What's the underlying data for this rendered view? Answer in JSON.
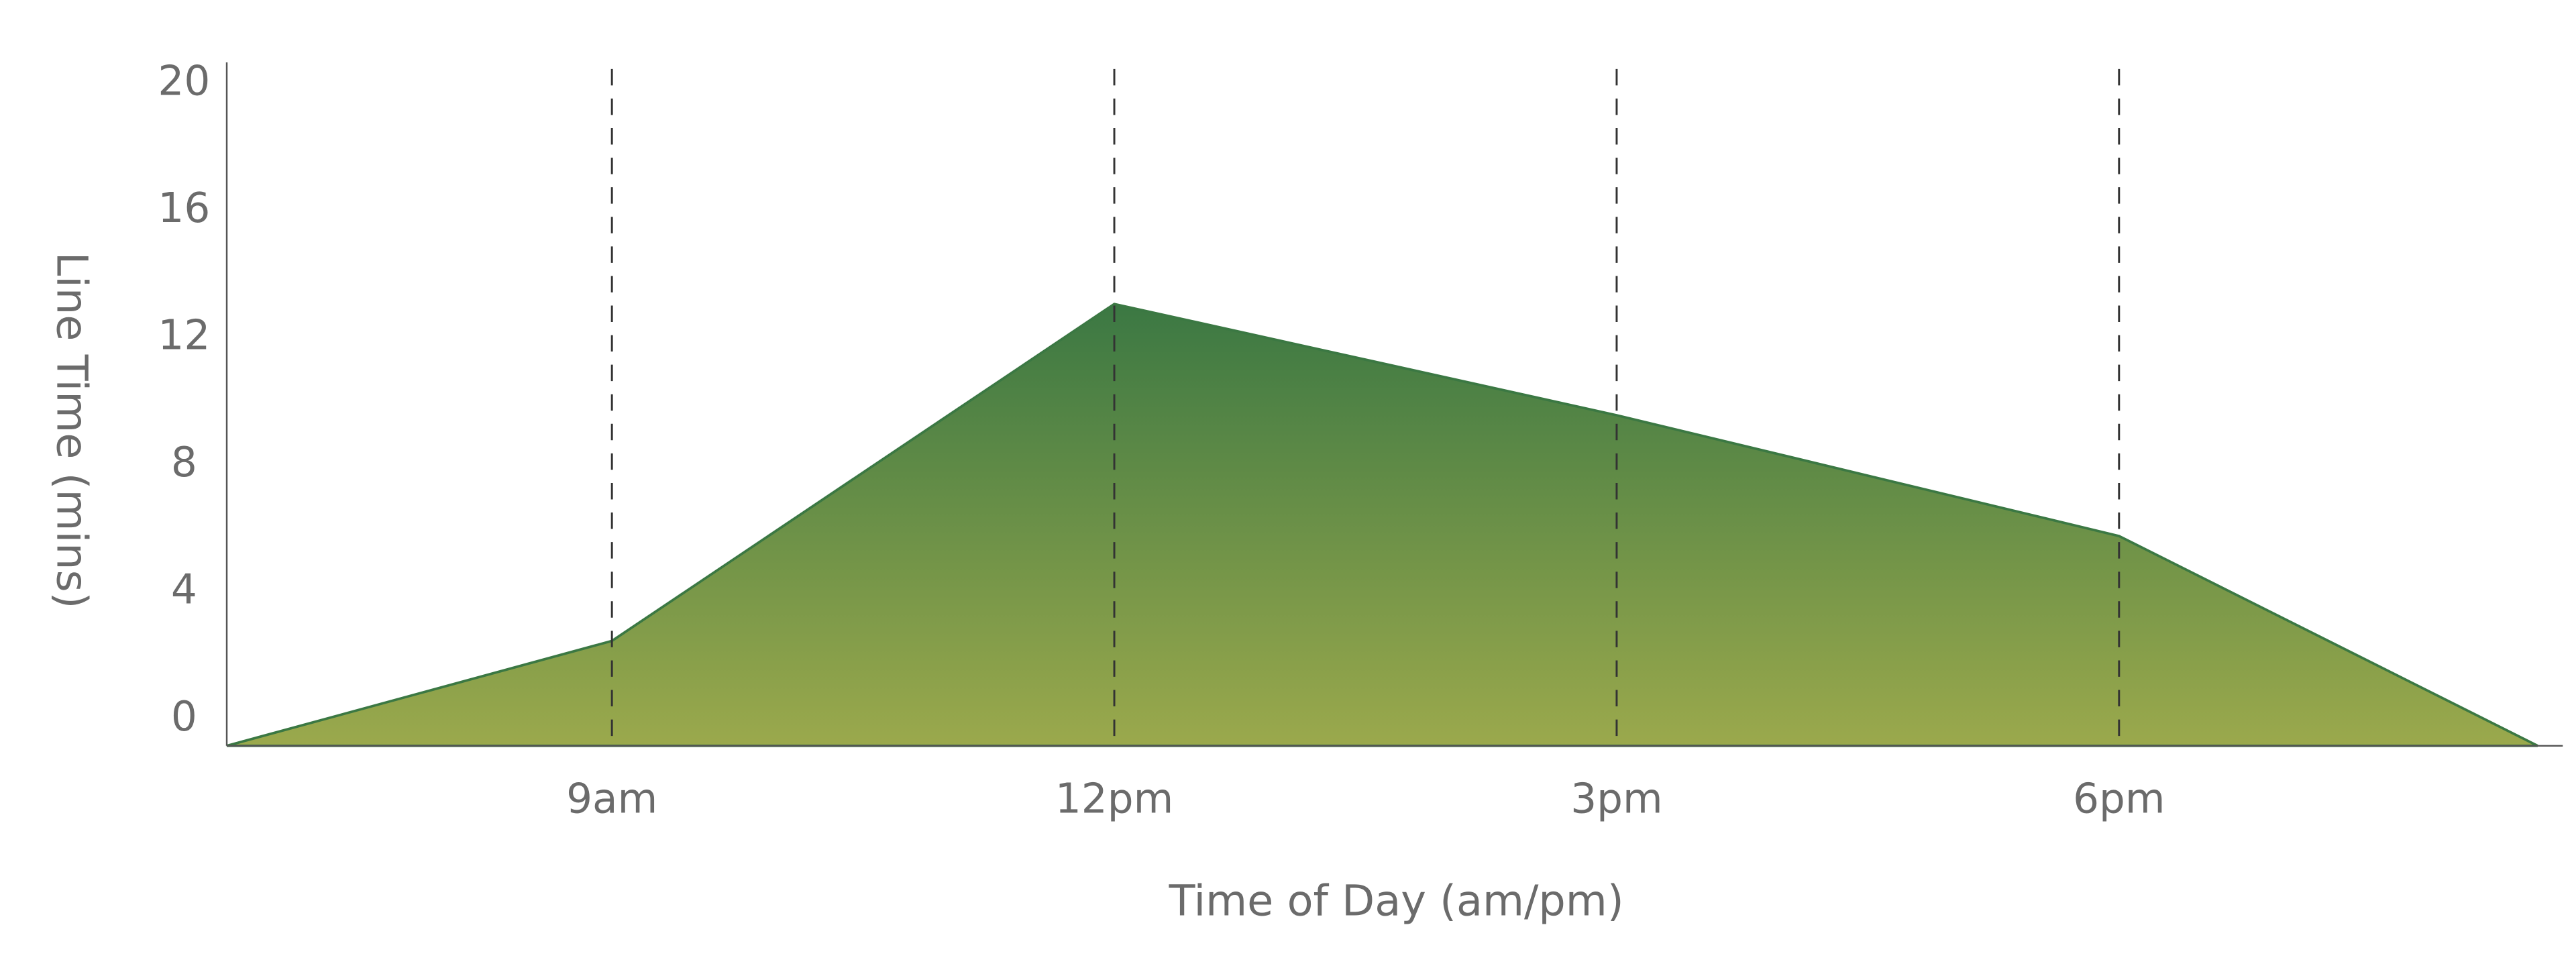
{
  "chart_data": {
    "type": "area",
    "xlabel": "Time of Day (am/pm)",
    "ylabel": "Line Time (mins)",
    "x": [
      6.7,
      9,
      12,
      15,
      18,
      20.5
    ],
    "values": [
      0,
      3.3,
      13.9,
      10.4,
      6.6,
      0
    ],
    "gradient": [
      "#3b7843",
      "#9ba94c"
    ],
    "xlim": [
      6.7,
      20.65
    ],
    "xticks": [
      {
        "value": 9,
        "label": "9am"
      },
      {
        "value": 12,
        "label": "12pm"
      },
      {
        "value": 15,
        "label": "3pm"
      },
      {
        "value": 18,
        "label": "6pm"
      }
    ],
    "ylim": [
      0,
      21.5
    ],
    "yticks": [
      0,
      4,
      8,
      12,
      16,
      20
    ],
    "grid": "x"
  }
}
